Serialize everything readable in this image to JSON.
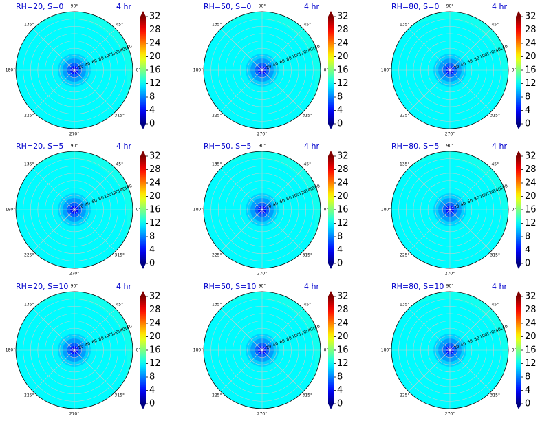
{
  "figure": {
    "colormap": "jet",
    "colors": {
      "title": "#0000cc",
      "grid": "#cccccc",
      "background": "#ffffff"
    },
    "angle_labels": [
      "0°",
      "45°",
      "90°",
      "135°",
      "180°",
      "225°",
      "270°",
      "315°"
    ],
    "radial_labels": [
      "20",
      "40",
      "60",
      "80",
      "100",
      "120",
      "140",
      "160"
    ],
    "colorbar_ticks": [
      "0",
      "4",
      "8",
      "12",
      "16",
      "20",
      "24",
      "28",
      "32"
    ]
  },
  "chart_data": [
    {
      "type": "heatmap",
      "subtype": "polar-contour",
      "title": "RH=20, S=0",
      "time_label": "4 hr",
      "rlim": [
        0,
        160
      ],
      "clim": [
        0,
        32
      ],
      "center_value": 2,
      "field_value": 12.5
    },
    {
      "type": "heatmap",
      "subtype": "polar-contour",
      "title": "RH=50, S=0",
      "time_label": "4 hr",
      "rlim": [
        0,
        160
      ],
      "clim": [
        0,
        32
      ],
      "center_value": 2,
      "field_value": 12.5
    },
    {
      "type": "heatmap",
      "subtype": "polar-contour",
      "title": "RH=80, S=0",
      "time_label": "4 hr",
      "rlim": [
        0,
        160
      ],
      "clim": [
        0,
        32
      ],
      "center_value": 2,
      "field_value": 12.5
    },
    {
      "type": "heatmap",
      "subtype": "polar-contour",
      "title": "RH=20, S=5",
      "time_label": "4 hr",
      "rlim": [
        0,
        160
      ],
      "clim": [
        0,
        32
      ],
      "center_value": 2,
      "field_value": 12.5
    },
    {
      "type": "heatmap",
      "subtype": "polar-contour",
      "title": "RH=50, S=5",
      "time_label": "4 hr",
      "rlim": [
        0,
        160
      ],
      "clim": [
        0,
        32
      ],
      "center_value": 2,
      "field_value": 12.5
    },
    {
      "type": "heatmap",
      "subtype": "polar-contour",
      "title": "RH=80, S=5",
      "time_label": "4 hr",
      "rlim": [
        0,
        160
      ],
      "clim": [
        0,
        32
      ],
      "center_value": 2,
      "field_value": 12.5
    },
    {
      "type": "heatmap",
      "subtype": "polar-contour",
      "title": "RH=20, S=10",
      "time_label": "4 hr",
      "rlim": [
        0,
        160
      ],
      "clim": [
        0,
        32
      ],
      "center_value": 2,
      "field_value": 12.5
    },
    {
      "type": "heatmap",
      "subtype": "polar-contour",
      "title": "RH=50, S=10",
      "time_label": "4 hr",
      "rlim": [
        0,
        160
      ],
      "clim": [
        0,
        32
      ],
      "center_value": 2,
      "field_value": 12.5
    },
    {
      "type": "heatmap",
      "subtype": "polar-contour",
      "title": "RH=80, S=10",
      "time_label": "4 hr",
      "rlim": [
        0,
        160
      ],
      "clim": [
        0,
        32
      ],
      "center_value": 2,
      "field_value": 12.5
    }
  ]
}
